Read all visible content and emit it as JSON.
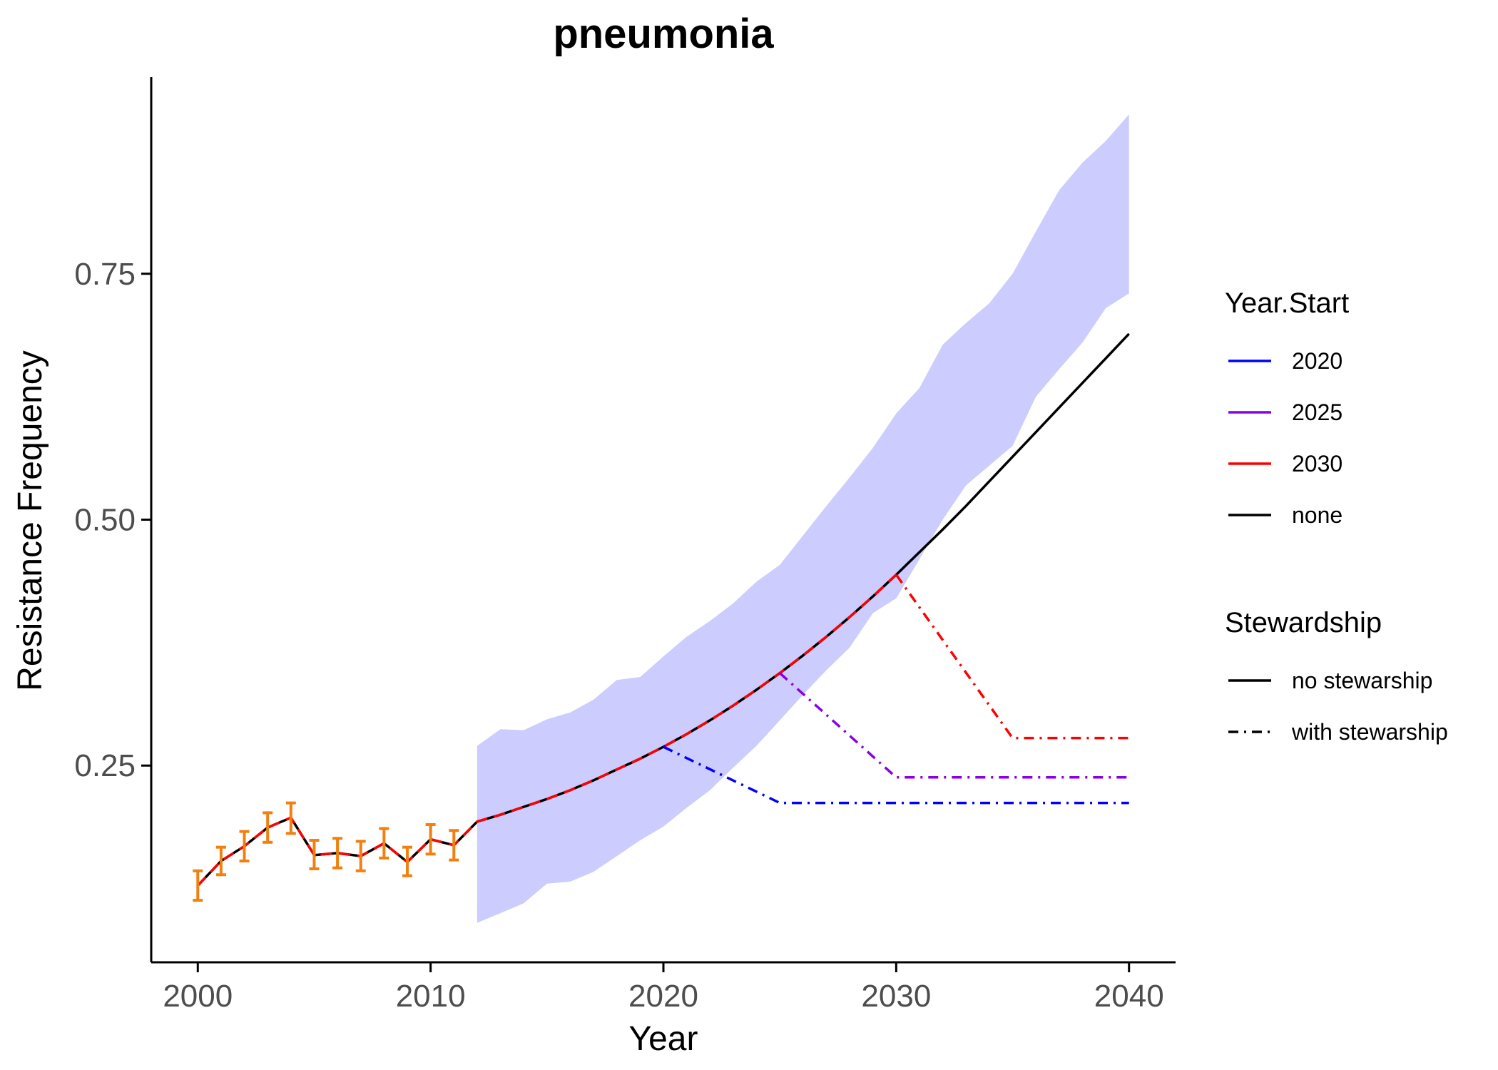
{
  "chart_data": {
    "type": "line",
    "title": "pneumonia",
    "xlabel": "Year",
    "ylabel": "Resistance Frequency",
    "xlim": [
      1998,
      2042
    ],
    "ylim": [
      0.05,
      0.95
    ],
    "x_ticks": [
      2000,
      2010,
      2020,
      2030,
      2040
    ],
    "x_tick_labels": [
      "2000",
      "2010",
      "2020",
      "2030",
      "2040"
    ],
    "y_ticks": [
      0.25,
      0.5,
      0.75
    ],
    "y_tick_labels": [
      "0.25",
      "0.50",
      "0.75"
    ],
    "grid": false,
    "legend_position": "right",
    "colors": {
      "2020": "#0000ff",
      "2025": "#8a00e6",
      "2030": "#ff0000",
      "none": "#000000",
      "band": "#ccccff",
      "observed": "#f08010"
    },
    "observed": {
      "x": [
        2000,
        2001,
        2002,
        2003,
        2004,
        2005,
        2006,
        2007,
        2008,
        2009,
        2010,
        2011
      ],
      "y": [
        0.128,
        0.153,
        0.168,
        0.187,
        0.197,
        0.159,
        0.161,
        0.158,
        0.171,
        0.152,
        0.175,
        0.169
      ],
      "lower": [
        0.113,
        0.139,
        0.153,
        0.172,
        0.181,
        0.145,
        0.146,
        0.143,
        0.156,
        0.138,
        0.16,
        0.154
      ],
      "upper": [
        0.143,
        0.167,
        0.183,
        0.202,
        0.212,
        0.174,
        0.176,
        0.173,
        0.186,
        0.167,
        0.19,
        0.184
      ]
    },
    "uncertainty_band": {
      "x": [
        2012,
        2013,
        2014,
        2015,
        2016,
        2017,
        2018,
        2019,
        2020,
        2021,
        2022,
        2023,
        2024,
        2025,
        2026,
        2027,
        2028,
        2029,
        2030,
        2031,
        2032,
        2033,
        2034,
        2035,
        2036,
        2037,
        2038,
        2039,
        2040
      ],
      "lower": [
        0.09,
        0.1,
        0.11,
        0.13,
        0.132,
        0.142,
        0.158,
        0.174,
        0.188,
        0.207,
        0.225,
        0.248,
        0.27,
        0.296,
        0.322,
        0.347,
        0.37,
        0.405,
        0.42,
        0.46,
        0.5,
        0.535,
        0.555,
        0.575,
        0.625,
        0.653,
        0.68,
        0.715,
        0.73
      ],
      "upper": [
        0.27,
        0.287,
        0.286,
        0.297,
        0.304,
        0.317,
        0.337,
        0.34,
        0.361,
        0.381,
        0.397,
        0.415,
        0.437,
        0.454,
        0.484,
        0.514,
        0.543,
        0.573,
        0.608,
        0.634,
        0.678,
        0.7,
        0.72,
        0.75,
        0.793,
        0.835,
        0.863,
        0.885,
        0.912
      ]
    },
    "series": [
      {
        "name": "none",
        "group": "no stewarship",
        "color": "#000000",
        "dash": "solid",
        "x": [
          2000,
          2001,
          2002,
          2003,
          2004,
          2005,
          2006,
          2007,
          2008,
          2009,
          2010,
          2011,
          2012,
          2013,
          2014,
          2015,
          2016,
          2017,
          2018,
          2019,
          2020,
          2021,
          2022,
          2023,
          2024,
          2025,
          2026,
          2027,
          2028,
          2029,
          2030,
          2031,
          2032,
          2033,
          2034,
          2035,
          2036,
          2037,
          2038,
          2039,
          2040
        ],
        "y": [
          0.128,
          0.153,
          0.168,
          0.187,
          0.197,
          0.159,
          0.161,
          0.158,
          0.171,
          0.152,
          0.175,
          0.169,
          0.193,
          0.2,
          0.208,
          0.216,
          0.225,
          0.235,
          0.246,
          0.257,
          0.269,
          0.282,
          0.296,
          0.311,
          0.327,
          0.344,
          0.362,
          0.381,
          0.401,
          0.422,
          0.444,
          0.467,
          0.49,
          0.514,
          0.539,
          0.564,
          0.589,
          0.614,
          0.639,
          0.664,
          0.689
        ]
      },
      {
        "name": "2030",
        "group": "no stewarship",
        "color": "#ff0000",
        "dash": "dashed",
        "x": [
          2000,
          2001,
          2002,
          2003,
          2004,
          2005,
          2006,
          2007,
          2008,
          2009,
          2010,
          2011,
          2012,
          2013,
          2014,
          2015,
          2016,
          2017,
          2018,
          2019,
          2020,
          2021,
          2022,
          2023,
          2024,
          2025,
          2026,
          2027,
          2028,
          2029,
          2030
        ],
        "y": [
          0.128,
          0.153,
          0.168,
          0.187,
          0.197,
          0.159,
          0.161,
          0.158,
          0.171,
          0.152,
          0.175,
          0.169,
          0.193,
          0.2,
          0.208,
          0.216,
          0.225,
          0.235,
          0.246,
          0.257,
          0.269,
          0.282,
          0.296,
          0.311,
          0.327,
          0.344,
          0.362,
          0.381,
          0.401,
          0.422,
          0.444
        ]
      },
      {
        "name": "2030",
        "group": "with stewarship",
        "color": "#ff0000",
        "dash": "dashdot",
        "x": [
          2030,
          2035,
          2040
        ],
        "y": [
          0.444,
          0.278,
          0.278
        ]
      },
      {
        "name": "2025",
        "group": "with stewarship",
        "color": "#8a00e6",
        "dash": "dashdot",
        "x": [
          2025,
          2030,
          2040
        ],
        "y": [
          0.344,
          0.238,
          0.238
        ]
      },
      {
        "name": "2020",
        "group": "with stewarship",
        "color": "#0000ff",
        "dash": "dashdot",
        "x": [
          2020,
          2025,
          2040
        ],
        "y": [
          0.269,
          0.212,
          0.212
        ]
      }
    ],
    "legend": {
      "year_start_title": "Year.Start",
      "year_start_items": [
        {
          "label": "2020",
          "color": "#0000ff"
        },
        {
          "label": "2025",
          "color": "#8a00e6"
        },
        {
          "label": "2030",
          "color": "#ff0000"
        },
        {
          "label": "none",
          "color": "#000000"
        }
      ],
      "stewardship_title": "Stewardship",
      "stewardship_items": [
        {
          "label": "no stewarship",
          "dash": "solid"
        },
        {
          "label": "with stewarship",
          "dash": "dashdot"
        }
      ]
    }
  }
}
